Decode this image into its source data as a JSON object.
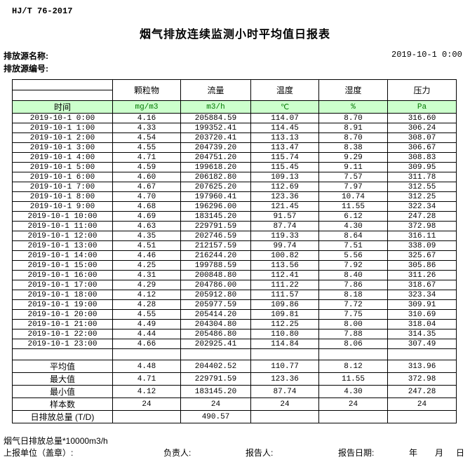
{
  "header": {
    "standard": "HJ/T 76-2017",
    "title": "烟气排放连续监测小时平均值日报表",
    "source_name_label": "排放源名称:",
    "source_code_label": "排放源编号:",
    "datetime": "2019-10-1 0:00"
  },
  "table": {
    "time_header": "时间",
    "columns": [
      {
        "name": "颗粒物",
        "unit": "mg/m3"
      },
      {
        "name": "流量",
        "unit": "m3/h"
      },
      {
        "name": "温度",
        "unit": "℃"
      },
      {
        "name": "湿度",
        "unit": "%"
      },
      {
        "name": "压力",
        "unit": "Pa"
      }
    ],
    "rows": [
      {
        "time": "2019-10-1 0:00",
        "values": [
          "4.16",
          "205884.59",
          "114.07",
          "8.70",
          "316.60"
        ]
      },
      {
        "time": "2019-10-1 1:00",
        "values": [
          "4.33",
          "199352.41",
          "114.45",
          "8.91",
          "306.24"
        ]
      },
      {
        "time": "2019-10-1 2:00",
        "values": [
          "4.54",
          "203720.41",
          "113.13",
          "8.70",
          "308.07"
        ]
      },
      {
        "time": "2019-10-1 3:00",
        "values": [
          "4.55",
          "204739.20",
          "113.47",
          "8.38",
          "306.67"
        ]
      },
      {
        "time": "2019-10-1 4:00",
        "values": [
          "4.71",
          "204751.20",
          "115.74",
          "9.29",
          "308.83"
        ]
      },
      {
        "time": "2019-10-1 5:00",
        "values": [
          "4.59",
          "199618.20",
          "115.45",
          "9.11",
          "309.95"
        ]
      },
      {
        "time": "2019-10-1 6:00",
        "values": [
          "4.60",
          "206182.80",
          "109.13",
          "7.57",
          "311.78"
        ]
      },
      {
        "time": "2019-10-1 7:00",
        "values": [
          "4.67",
          "207625.20",
          "112.69",
          "7.97",
          "312.55"
        ]
      },
      {
        "time": "2019-10-1 8:00",
        "values": [
          "4.70",
          "197960.41",
          "123.36",
          "10.74",
          "312.25"
        ]
      },
      {
        "time": "2019-10-1 9:00",
        "values": [
          "4.68",
          "196296.00",
          "121.45",
          "11.55",
          "322.34"
        ]
      },
      {
        "time": "2019-10-1 10:00",
        "values": [
          "4.69",
          "183145.20",
          "91.57",
          "6.12",
          "247.28"
        ]
      },
      {
        "time": "2019-10-1 11:00",
        "values": [
          "4.63",
          "229791.59",
          "87.74",
          "4.30",
          "372.98"
        ]
      },
      {
        "time": "2019-10-1 12:00",
        "values": [
          "4.35",
          "202746.59",
          "119.33",
          "8.64",
          "316.11"
        ]
      },
      {
        "time": "2019-10-1 13:00",
        "values": [
          "4.51",
          "212157.59",
          "99.74",
          "7.51",
          "338.09"
        ]
      },
      {
        "time": "2019-10-1 14:00",
        "values": [
          "4.46",
          "216244.20",
          "100.82",
          "5.56",
          "325.67"
        ]
      },
      {
        "time": "2019-10-1 15:00",
        "values": [
          "4.25",
          "199788.59",
          "113.56",
          "7.92",
          "305.86"
        ]
      },
      {
        "time": "2019-10-1 16:00",
        "values": [
          "4.31",
          "200848.80",
          "112.41",
          "8.40",
          "311.26"
        ]
      },
      {
        "time": "2019-10-1 17:00",
        "values": [
          "4.29",
          "204786.00",
          "111.22",
          "7.86",
          "318.67"
        ]
      },
      {
        "time": "2019-10-1 18:00",
        "values": [
          "4.12",
          "205912.80",
          "111.57",
          "8.18",
          "323.34"
        ]
      },
      {
        "time": "2019-10-1 19:00",
        "values": [
          "4.28",
          "205977.59",
          "109.86",
          "7.72",
          "309.91"
        ]
      },
      {
        "time": "2019-10-1 20:00",
        "values": [
          "4.55",
          "205414.20",
          "109.81",
          "7.75",
          "310.69"
        ]
      },
      {
        "time": "2019-10-1 21:00",
        "values": [
          "4.49",
          "204304.80",
          "112.25",
          "8.00",
          "318.04"
        ]
      },
      {
        "time": "2019-10-1 22:00",
        "values": [
          "4.44",
          "205486.80",
          "110.80",
          "7.88",
          "314.35"
        ]
      },
      {
        "time": "2019-10-1 23:00",
        "values": [
          "4.66",
          "202925.41",
          "114.84",
          "8.06",
          "307.49"
        ]
      }
    ],
    "summary": [
      {
        "label": "平均值",
        "values": [
          "4.48",
          "204402.52",
          "110.77",
          "8.12",
          "313.96"
        ]
      },
      {
        "label": "最大值",
        "values": [
          "4.71",
          "229791.59",
          "123.36",
          "11.55",
          "372.98"
        ]
      },
      {
        "label": "最小值",
        "values": [
          "4.12",
          "183145.20",
          "87.74",
          "4.30",
          "247.28"
        ]
      },
      {
        "label": "样本数",
        "values": [
          "24",
          "24",
          "24",
          "24",
          "24"
        ]
      },
      {
        "label": "日排放总量 (T/D)",
        "values": [
          "",
          "490.57",
          "",
          "",
          ""
        ]
      }
    ]
  },
  "footer": {
    "note": "烟气日排放总量*10000m3/h",
    "report_unit_label": "上报单位（盖章）:",
    "responsible_label": "负责人:",
    "reporter_label": "报告人:",
    "report_date_label": "报告日期:",
    "year_label": "年",
    "month_label": "月",
    "day_label": "日"
  },
  "colors": {
    "header_row_bg": "#ccffcc",
    "unit_text": "#007700",
    "border": "#000000"
  }
}
